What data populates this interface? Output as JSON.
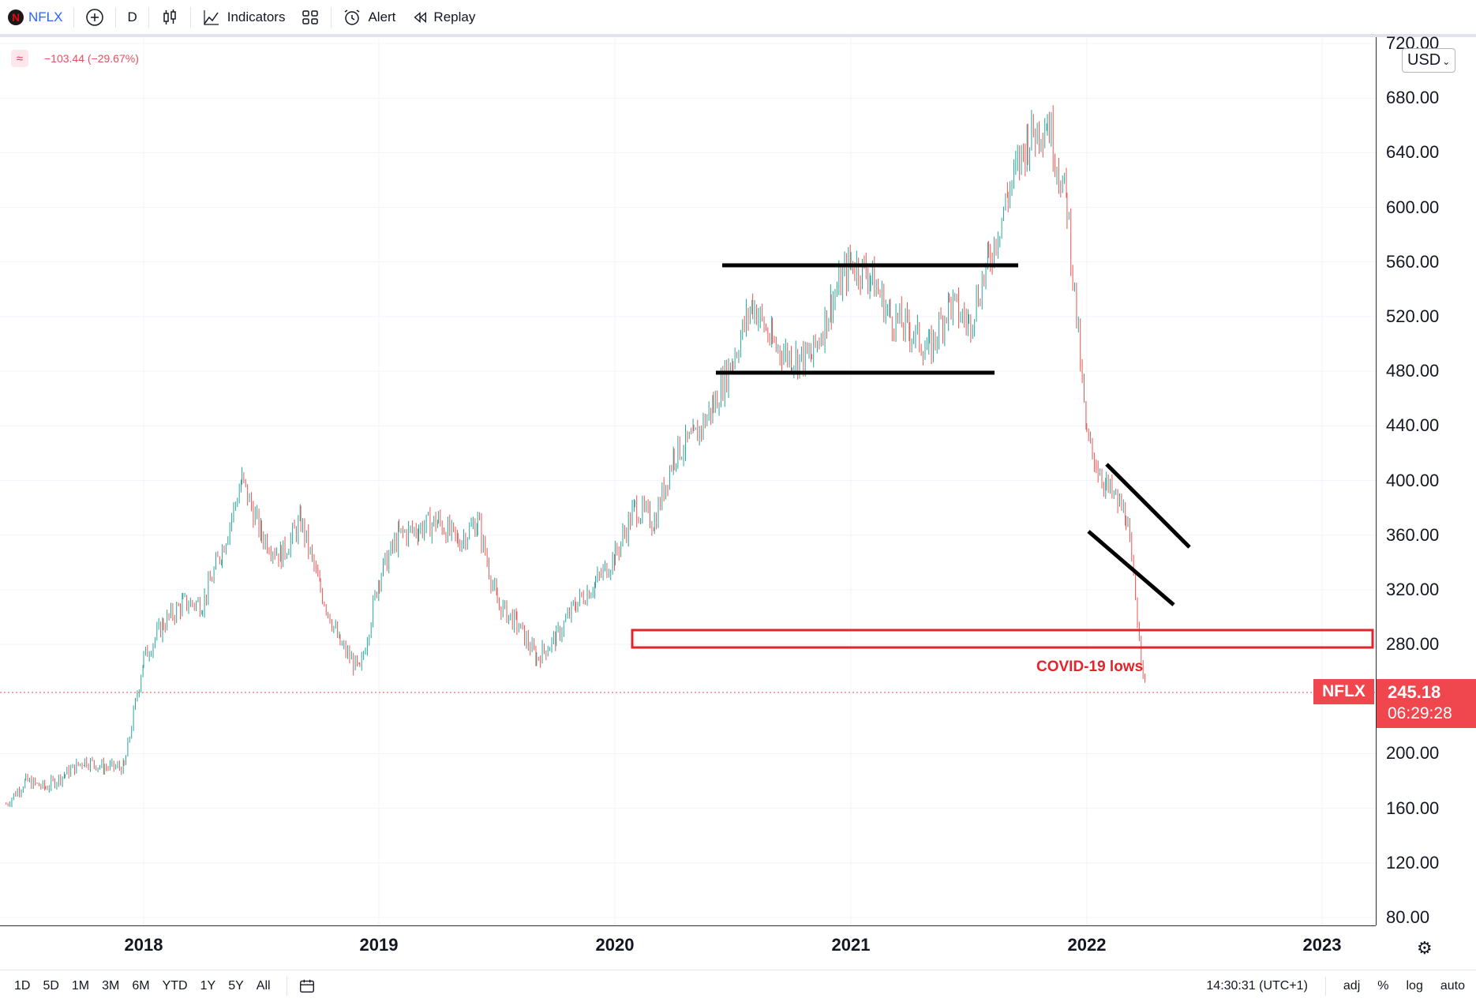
{
  "toolbar": {
    "symbol": "NFLX",
    "interval": "D",
    "indicators_label": "Indicators",
    "alert_label": "Alert",
    "replay_label": "Replay"
  },
  "legend": {
    "change_text": "−103.44 (−29.67%)",
    "icon": "wave-icon"
  },
  "currency_button": "USD",
  "price_axis": {
    "labels": [
      "720.00",
      "680.00",
      "640.00",
      "600.00",
      "560.00",
      "520.00",
      "480.00",
      "440.00",
      "400.00",
      "360.00",
      "320.00",
      "280.00",
      "200.00",
      "160.00",
      "120.00",
      "80.00"
    ]
  },
  "time_axis": {
    "labels": [
      "2018",
      "2019",
      "2020",
      "2021",
      "2022",
      "2023"
    ]
  },
  "last": {
    "symbol": "NFLX",
    "price": "245.18",
    "countdown": "06:29:28",
    "color": "#f0474f"
  },
  "annotation": {
    "text": "COVID-19 lows",
    "color": "#e3242b"
  },
  "bottom": {
    "ranges": [
      "1D",
      "5D",
      "1M",
      "3M",
      "6M",
      "YTD",
      "1Y",
      "5Y",
      "All"
    ],
    "clock": "14:30:31 (UTC+1)",
    "adj": "adj",
    "percent": "%",
    "log": "log",
    "auto": "auto"
  },
  "colors": {
    "up": "#26a69a",
    "down": "#ef5350",
    "grid": "#f0f3fa"
  },
  "chart_data": {
    "type": "candlestick",
    "symbol": "NFLX",
    "interval": "D",
    "title": "NFLX",
    "ylim": [
      80,
      720
    ],
    "x_range": [
      "2017-06",
      "2023-04"
    ],
    "last_price": 245.18,
    "series": [
      {
        "name": "NFLX",
        "points": [
          [
            "2017-06",
            163
          ],
          [
            "2017-07",
            180
          ],
          [
            "2017-08",
            175
          ],
          [
            "2017-09",
            185
          ],
          [
            "2017-10",
            195
          ],
          [
            "2017-11",
            190
          ],
          [
            "2017-12",
            190
          ],
          [
            "2018-01",
            270
          ],
          [
            "2018-02",
            295
          ],
          [
            "2018-03",
            310
          ],
          [
            "2018-04",
            310
          ],
          [
            "2018-05",
            350
          ],
          [
            "2018-06",
            400
          ],
          [
            "2018-07",
            360
          ],
          [
            "2018-08",
            345
          ],
          [
            "2018-09",
            370
          ],
          [
            "2018-10",
            320
          ],
          [
            "2018-11",
            280
          ],
          [
            "2018-12",
            260
          ],
          [
            "2019-01",
            330
          ],
          [
            "2019-02",
            360
          ],
          [
            "2019-03",
            365
          ],
          [
            "2019-04",
            370
          ],
          [
            "2019-05",
            355
          ],
          [
            "2019-06",
            370
          ],
          [
            "2019-07",
            310
          ],
          [
            "2019-08",
            295
          ],
          [
            "2019-09",
            270
          ],
          [
            "2019-10",
            285
          ],
          [
            "2019-11",
            310
          ],
          [
            "2019-12",
            325
          ],
          [
            "2020-01",
            345
          ],
          [
            "2020-02",
            380
          ],
          [
            "2020-03",
            370
          ],
          [
            "2020-04",
            420
          ],
          [
            "2020-05",
            430
          ],
          [
            "2020-06",
            455
          ],
          [
            "2020-07",
            490
          ],
          [
            "2020-08",
            530
          ],
          [
            "2020-09",
            500
          ],
          [
            "2020-10",
            490
          ],
          [
            "2020-11",
            490
          ],
          [
            "2020-12",
            530
          ],
          [
            "2021-01",
            560
          ],
          [
            "2021-02",
            550
          ],
          [
            "2021-03",
            520
          ],
          [
            "2021-04",
            510
          ],
          [
            "2021-05",
            495
          ],
          [
            "2021-06",
            530
          ],
          [
            "2021-07",
            515
          ],
          [
            "2021-08",
            560
          ],
          [
            "2021-09",
            610
          ],
          [
            "2021-10",
            650
          ],
          [
            "2021-11",
            665
          ],
          [
            "2021-12",
            602
          ],
          [
            "2022-01",
            430
          ],
          [
            "2022-02",
            395
          ],
          [
            "2022-03",
            375
          ],
          [
            "2022-04",
            245
          ]
        ]
      }
    ],
    "annotations": {
      "range_channel": {
        "top": 560,
        "bottom": 481,
        "start": "2020-07",
        "end": "2021-09"
      },
      "falling_channel": {
        "upper": [
          [
            "2022-02",
            415
          ],
          [
            "2022-06",
            355
          ]
        ],
        "lower": [
          [
            "2022-01",
            365
          ],
          [
            "2022-05",
            310
          ]
        ]
      },
      "covid_lows_zone": {
        "top": 292,
        "bottom": 278,
        "start": "2020-03",
        "label": "COVID-19 lows"
      }
    }
  }
}
